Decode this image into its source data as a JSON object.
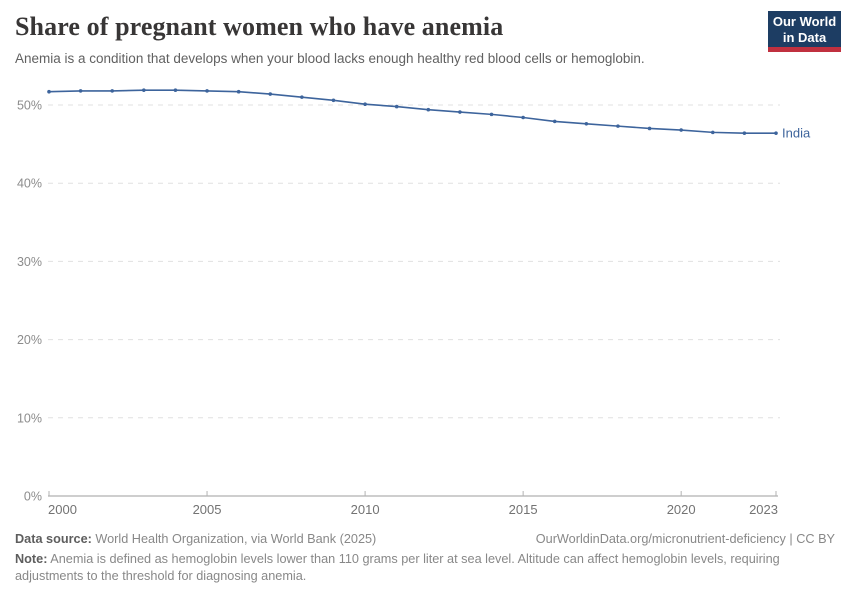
{
  "header": {
    "title": "Share of pregnant women who have anemia",
    "subtitle": "Anemia is a condition that develops when your blood lacks enough healthy red blood cells or hemoglobin.",
    "logo": {
      "line1": "Our World",
      "line2": "in Data"
    },
    "logo_colors": {
      "navy": "#1d3d63",
      "red": "#c0303f"
    }
  },
  "chart_data": {
    "type": "line",
    "title": "Share of pregnant women who have anemia",
    "xlabel": "",
    "ylabel": "",
    "xlim": [
      2000,
      2023
    ],
    "ylim": [
      0,
      52.5
    ],
    "grid": "horizontal-dashed",
    "legend_position": "end-of-line-label",
    "x_ticks": [
      2000,
      2005,
      2010,
      2015,
      2020,
      2023
    ],
    "y_ticks": [
      {
        "value": 0,
        "label": "0%"
      },
      {
        "value": 10,
        "label": "10%"
      },
      {
        "value": 20,
        "label": "20%"
      },
      {
        "value": 30,
        "label": "30%"
      },
      {
        "value": 40,
        "label": "40%"
      },
      {
        "value": 50,
        "label": "50%"
      }
    ],
    "series": [
      {
        "name": "India",
        "color": "#3d649c",
        "x": [
          2000,
          2001,
          2002,
          2003,
          2004,
          2005,
          2006,
          2007,
          2008,
          2009,
          2010,
          2011,
          2012,
          2013,
          2014,
          2015,
          2016,
          2017,
          2018,
          2019,
          2020,
          2021,
          2022,
          2023
        ],
        "values": [
          51.7,
          51.8,
          51.8,
          51.9,
          51.9,
          51.8,
          51.7,
          51.4,
          51.0,
          50.6,
          50.1,
          49.8,
          49.4,
          49.1,
          48.8,
          48.4,
          47.9,
          47.6,
          47.3,
          47.0,
          46.8,
          46.5,
          46.4,
          46.4
        ]
      }
    ]
  },
  "footer": {
    "datasource_label": "Data source:",
    "datasource_text": " World Health Organization, via World Bank (2025)",
    "rights": "OurWorldinData.org/micronutrient-deficiency | CC BY",
    "note_label": "Note:",
    "note_text": " Anemia is defined as hemoglobin levels lower than 110 grams per liter at sea level. Altitude can affect hemoglobin levels, requiring adjustments to the threshold for diagnosing anemia."
  }
}
